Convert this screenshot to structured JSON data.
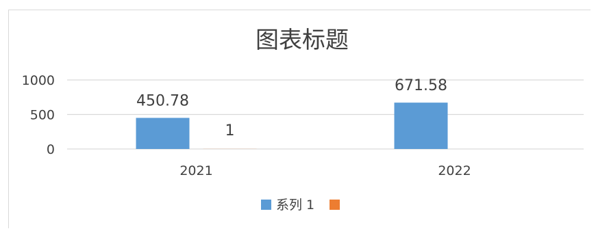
{
  "chart_data": {
    "type": "bar",
    "title": "图表标题",
    "categories": [
      "2021",
      "2022"
    ],
    "series": [
      {
        "name": "系列 1",
        "color": "#5b9bd5",
        "values": [
          450.78,
          671.58
        ]
      },
      {
        "name": "",
        "color": "#ed7d31",
        "values": [
          1,
          null
        ]
      }
    ],
    "data_labels": [
      [
        "450.78",
        "671.58"
      ],
      [
        "1",
        ""
      ]
    ],
    "y_ticks": [
      "0",
      "500",
      "1000"
    ],
    "ylim": [
      0,
      1000
    ],
    "grid": true,
    "legend": "bottom",
    "xlabel": "",
    "ylabel": ""
  }
}
